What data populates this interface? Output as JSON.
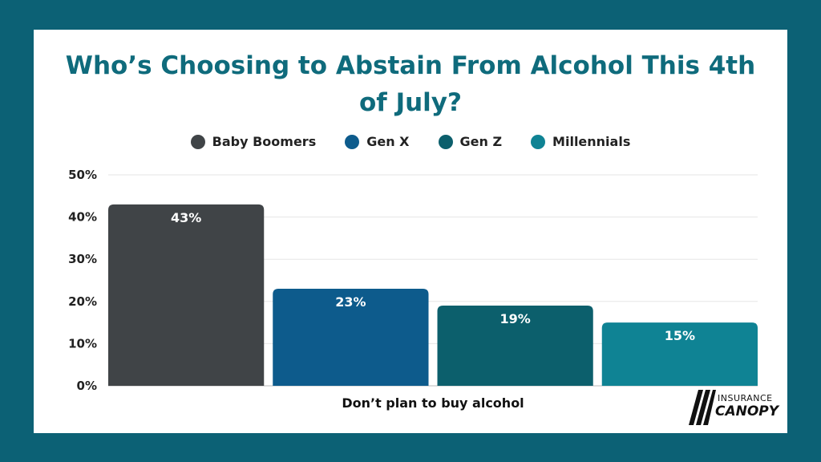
{
  "chart_data": {
    "type": "bar",
    "title": "Who’s Choosing to Abstain From Alcohol This 4th of July?",
    "categories": [
      "Don’t plan to buy alcohol"
    ],
    "series": [
      {
        "name": "Baby Boomers",
        "values": [
          43
        ],
        "color": "#404447"
      },
      {
        "name": "Gen X",
        "values": [
          23
        ],
        "color": "#0d5b8c"
      },
      {
        "name": "Gen Z",
        "values": [
          19
        ],
        "color": "#0c5f6c"
      },
      {
        "name": "Millennials",
        "values": [
          15
        ],
        "color": "#0f8394"
      }
    ],
    "ylim": [
      0,
      50
    ],
    "yticks": [
      "0%",
      "10%",
      "20%",
      "30%",
      "40%",
      "50%"
    ],
    "data_labels": [
      "43%",
      "23%",
      "19%",
      "15%"
    ],
    "grid": true,
    "legend_position": "top"
  },
  "logo": {
    "top_text": "INSURANCE",
    "bottom_text": "CANOPY"
  }
}
